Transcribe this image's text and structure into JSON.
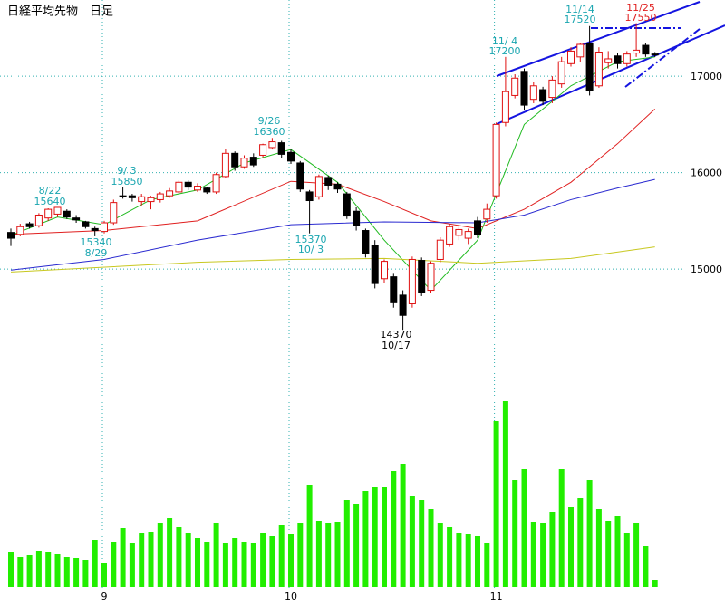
{
  "chart_data": [
    {
      "type": "candlestick",
      "title": "日経平均先物　日足",
      "categories": [
        null,
        null,
        null,
        null,
        null,
        null,
        null,
        null,
        null,
        null,
        "9",
        null,
        null,
        null,
        null,
        null,
        null,
        null,
        null,
        null,
        null,
        null,
        null,
        null,
        null,
        null,
        null,
        null,
        null,
        null,
        "10",
        null,
        null,
        null,
        null,
        null,
        null,
        null,
        null,
        null,
        null,
        null,
        null,
        null,
        null,
        null,
        null,
        null,
        null,
        null,
        null,
        null,
        "11",
        null,
        null,
        null,
        null,
        null,
        null,
        null,
        null,
        null,
        null,
        null,
        null,
        null,
        null,
        null,
        null,
        null
      ],
      "open": [
        15380,
        15360,
        15470,
        15450,
        15530,
        15570,
        15600,
        15530,
        15490,
        15420,
        15390,
        15480,
        15760,
        15760,
        15700,
        15700,
        15720,
        15760,
        15800,
        15900,
        15820,
        15840,
        15800,
        15960,
        16200,
        16060,
        16160,
        16180,
        16260,
        16310,
        16210,
        16100,
        15800,
        15750,
        15950,
        15880,
        15780,
        15600,
        15400,
        15250,
        14900,
        14920,
        14730,
        14640,
        15090,
        14780,
        15100,
        15260,
        15350,
        15320,
        15500,
        15520,
        15760,
        16520,
        16800,
        17050,
        16760,
        16860,
        16780,
        16920,
        17130,
        17200,
        17340,
        16900,
        17140,
        17210,
        17130,
        17240,
        17320,
        17230
      ],
      "high": [
        15420,
        15470,
        15490,
        15580,
        15630,
        15640,
        15620,
        15560,
        15500,
        15440,
        15500,
        15720,
        15850,
        15780,
        15780,
        15760,
        15800,
        15840,
        15920,
        15920,
        15890,
        15850,
        16000,
        16250,
        16220,
        16180,
        16200,
        16300,
        16360,
        16330,
        16240,
        16120,
        15820,
        15980,
        15970,
        15900,
        15800,
        15640,
        15420,
        15300,
        15100,
        14960,
        14780,
        15130,
        15120,
        15080,
        15330,
        15470,
        15440,
        15420,
        15540,
        15680,
        16520,
        17200,
        17020,
        17080,
        16940,
        16890,
        17000,
        17200,
        17300,
        17340,
        17520,
        17300,
        17260,
        17240,
        17260,
        17550,
        17340,
        17250
      ],
      "low": [
        15240,
        15340,
        15420,
        15430,
        15500,
        15540,
        15520,
        15480,
        15420,
        15340,
        15370,
        15460,
        15730,
        15700,
        15660,
        15620,
        15690,
        15740,
        15780,
        15820,
        15800,
        15780,
        15780,
        15940,
        16020,
        16040,
        16060,
        16160,
        16240,
        16150,
        16090,
        15800,
        15370,
        15720,
        15820,
        15790,
        15520,
        15400,
        15120,
        14800,
        14860,
        14600,
        14370,
        14600,
        14720,
        14750,
        15070,
        15230,
        15300,
        15260,
        15320,
        15480,
        15730,
        16480,
        16770,
        16650,
        16720,
        16700,
        16720,
        16880,
        17100,
        17150,
        16800,
        16880,
        17080,
        17080,
        17100,
        17200,
        17200,
        17200
      ],
      "close": [
        15320,
        15440,
        15440,
        15560,
        15620,
        15640,
        15540,
        15510,
        15440,
        15400,
        15480,
        15690,
        15750,
        15740,
        15750,
        15740,
        15780,
        15810,
        15900,
        15850,
        15860,
        15800,
        15980,
        16200,
        16060,
        16150,
        16080,
        16290,
        16320,
        16190,
        16120,
        15830,
        15710,
        15960,
        15870,
        15830,
        15550,
        15450,
        15160,
        14850,
        15080,
        14660,
        14520,
        15100,
        14760,
        15060,
        15300,
        15440,
        15410,
        15390,
        15360,
        15620,
        16500,
        16840,
        16980,
        16700,
        16900,
        16740,
        16960,
        17150,
        17260,
        17330,
        16850,
        17250,
        17180,
        17130,
        17230,
        17270,
        17230,
        17220
      ],
      "up_color": "#e01010",
      "down_color": "#000000",
      "ylim": [
        14250,
        17790
      ],
      "yticks": [
        15000,
        16000,
        17000
      ],
      "grid": true,
      "series": [
        {
          "color": "#22bb22",
          "x": [
            0,
            5,
            10,
            15,
            20,
            25,
            30,
            35,
            40,
            45,
            50,
            55,
            60,
            65,
            69
          ],
          "values": [
            15350,
            15540,
            15460,
            15720,
            15820,
            16100,
            16240,
            15900,
            15300,
            14780,
            15300,
            16500,
            16900,
            17150,
            17200
          ]
        },
        {
          "color": "#e02020",
          "x": [
            0,
            10,
            20,
            30,
            35,
            40,
            45,
            50,
            55,
            60,
            65,
            69
          ],
          "values": [
            15360,
            15400,
            15500,
            15910,
            15880,
            15700,
            15500,
            15420,
            15620,
            15900,
            16300,
            16660
          ]
        },
        {
          "color": "#2a2ad0",
          "x": [
            0,
            10,
            20,
            30,
            40,
            50,
            55,
            60,
            65,
            69
          ],
          "values": [
            14990,
            15100,
            15300,
            15460,
            15490,
            15480,
            15560,
            15720,
            15840,
            15930
          ]
        },
        {
          "color": "#c8c820",
          "x": [
            0,
            20,
            30,
            40,
            50,
            60,
            69
          ],
          "values": [
            14970,
            15070,
            15100,
            15110,
            15060,
            15110,
            15230
          ]
        }
      ],
      "annotations": [
        [
          "8/22",
          "15640"
        ],
        [
          "9/ 3",
          "15850"
        ],
        [
          "15340",
          "8/29"
        ],
        [
          "9/26",
          "16360"
        ],
        [
          "15370",
          "10/ 3"
        ],
        [
          "14370",
          "10/17"
        ],
        [
          "11/ 4",
          "17200"
        ],
        [
          "11/14",
          "17520"
        ],
        [
          "11/25",
          "17550"
        ]
      ]
    },
    {
      "type": "bar",
      "color": "#22ee00",
      "ylim": [
        0,
        270
      ],
      "values": [
        38,
        33,
        35,
        40,
        38,
        36,
        33,
        32,
        30,
        52,
        26,
        50,
        65,
        48,
        59,
        61,
        71,
        76,
        66,
        59,
        54,
        50,
        71,
        48,
        54,
        50,
        48,
        60,
        56,
        68,
        58,
        70,
        112,
        73,
        70,
        72,
        96,
        91,
        106,
        110,
        110,
        128,
        136,
        100,
        96,
        86,
        70,
        66,
        60,
        58,
        56,
        48,
        183,
        205,
        118,
        130,
        72,
        70,
        83,
        130,
        88,
        98,
        118,
        86,
        73,
        78,
        60,
        70,
        45,
        8
      ]
    }
  ]
}
